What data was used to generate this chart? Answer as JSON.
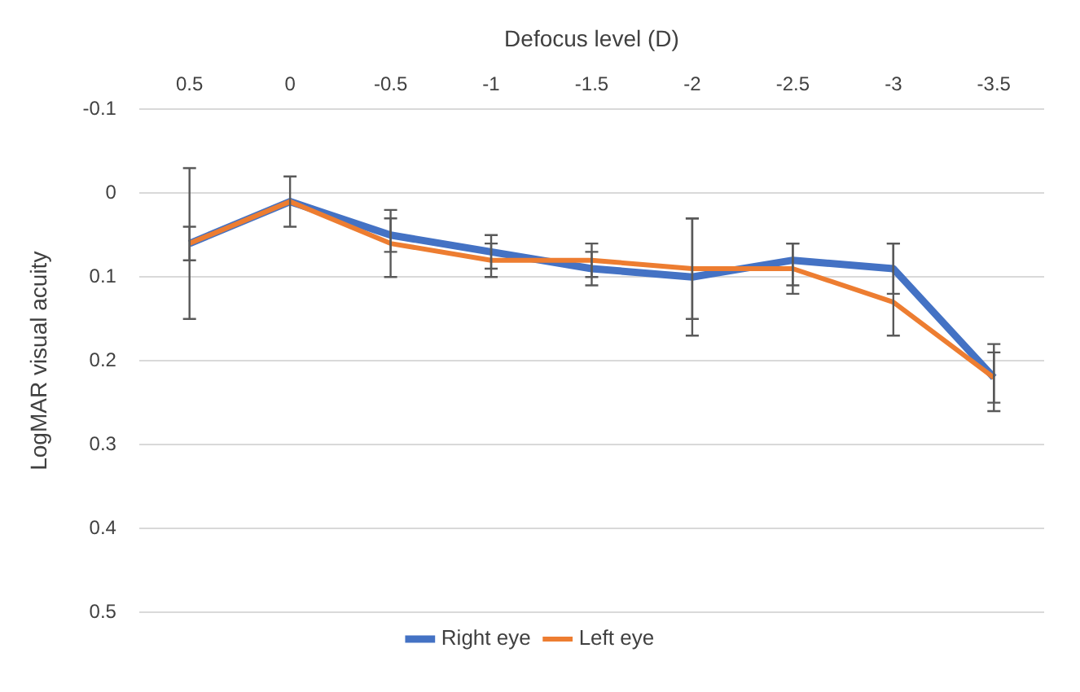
{
  "chart_data": {
    "type": "line",
    "xlabel": "Defocus level (D)",
    "ylabel": "LogMAR visual acuity",
    "categories": [
      "0.5",
      "0",
      "-0.5",
      "-1",
      "-1.5",
      "-2",
      "-2.5",
      "-3",
      "-3.5"
    ],
    "series": [
      {
        "name": "Right eye",
        "color": "#4472c4",
        "values": [
          0.06,
          0.01,
          0.05,
          0.07,
          0.09,
          0.1,
          0.08,
          0.09,
          0.22
        ],
        "errors": [
          [
            -0.03,
            0.15
          ],
          [
            -0.02,
            0.04
          ],
          [
            0.02,
            0.07
          ],
          [
            0.05,
            0.09
          ],
          [
            0.07,
            0.11
          ],
          [
            0.03,
            0.17
          ],
          [
            0.06,
            0.11
          ],
          [
            0.06,
            0.12
          ],
          [
            0.18,
            0.26
          ]
        ]
      },
      {
        "name": "Left eye",
        "color": "#ed7d31",
        "values": [
          0.06,
          0.01,
          0.06,
          0.08,
          0.08,
          0.09,
          0.09,
          0.13,
          0.22
        ],
        "errors": [
          [
            0.04,
            0.08
          ],
          null,
          [
            0.03,
            0.1
          ],
          [
            0.06,
            0.1
          ],
          [
            0.06,
            0.1
          ],
          [
            0.03,
            0.15
          ],
          [
            0.06,
            0.12
          ],
          [
            0.06,
            0.17
          ],
          [
            0.19,
            0.25
          ]
        ]
      }
    ],
    "ylim": [
      0.5,
      -0.1
    ],
    "yticks": [
      -0.1,
      0,
      0.1,
      0.2,
      0.3,
      0.4,
      0.5
    ],
    "grid": "y",
    "legend": "bottom",
    "marker": "none",
    "line_style": "solid"
  }
}
